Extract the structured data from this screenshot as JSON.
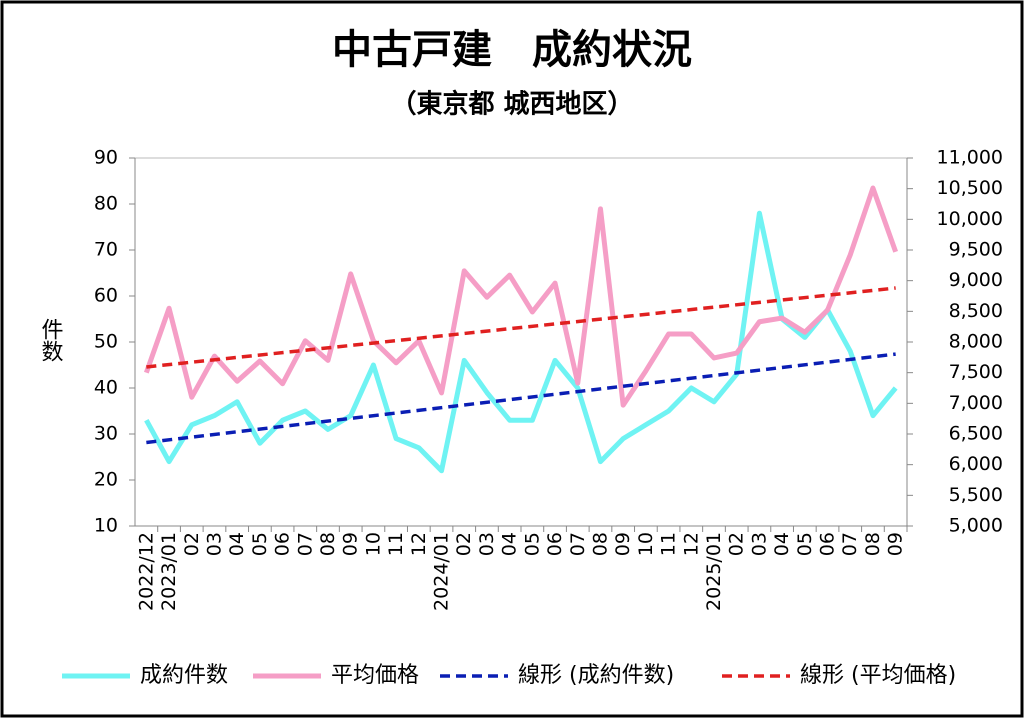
{
  "chart_data": {
    "type": "line",
    "title": "中古戸建　成約状況",
    "subtitle": "（東京都 城西地区）",
    "ylabel": "件数",
    "categories": [
      "2022/12",
      "2023/01",
      "02",
      "03",
      "04",
      "05",
      "06",
      "07",
      "08",
      "09",
      "10",
      "11",
      "12",
      "2024/01",
      "02",
      "03",
      "04",
      "05",
      "06",
      "07",
      "08",
      "09",
      "10",
      "11",
      "12",
      "2025/01",
      "02",
      "03",
      "04",
      "05",
      "06",
      "07",
      "08",
      "09"
    ],
    "series": [
      {
        "name": "成約件数",
        "color": "#6ff3f3",
        "values": [
          33,
          24,
          32,
          34,
          37,
          28,
          33,
          35,
          31,
          34,
          45,
          29,
          27,
          22,
          46,
          39,
          33,
          33,
          46,
          40,
          24,
          29,
          32,
          35,
          40,
          37,
          43,
          78,
          55,
          51,
          57,
          48,
          34,
          40
        ]
      },
      {
        "name": "平均価格",
        "color": "#f59ec6",
        "axis": "y2",
        "values": [
          7500,
          8550,
          7100,
          7770,
          7360,
          7690,
          7320,
          8020,
          7700,
          9110,
          8020,
          7660,
          8020,
          7170,
          9160,
          8730,
          9090,
          8490,
          8960,
          7330,
          10170,
          6970,
          7530,
          8130,
          8130,
          7740,
          7820,
          8330,
          8390,
          8160,
          8520,
          9420,
          10510,
          9470
        ]
      },
      {
        "name": "線形 (成約件数)",
        "color": "#0a1eb4",
        "dashed": true,
        "trend_of": 0
      },
      {
        "name": "線形 (平均価格)",
        "color": "#e02020",
        "dashed": true,
        "axis": "y2",
        "trend_of": 1
      }
    ],
    "ylim": [
      10,
      90
    ],
    "yticks": [
      10,
      20,
      30,
      40,
      50,
      60,
      70,
      80,
      90
    ],
    "y2lim": [
      5000,
      11000
    ],
    "y2ticks": [
      {
        "value": 5000,
        "label": "5,000"
      },
      {
        "value": 5500,
        "label": "5,500"
      },
      {
        "value": 6000,
        "label": "6,000"
      },
      {
        "value": 6500,
        "label": "6,500"
      },
      {
        "value": 7000,
        "label": "7,000"
      },
      {
        "value": 7500,
        "label": "7,500"
      },
      {
        "value": 8000,
        "label": "8,000"
      },
      {
        "value": 8500,
        "label": "8,500"
      },
      {
        "value": 9000,
        "label": "9,000"
      },
      {
        "value": 9500,
        "label": "9,500"
      },
      {
        "value": 10000,
        "label": "10,000"
      },
      {
        "value": 10500,
        "label": "10,500"
      },
      {
        "value": 11000,
        "label": "11,000"
      }
    ],
    "legend": "bottom"
  }
}
